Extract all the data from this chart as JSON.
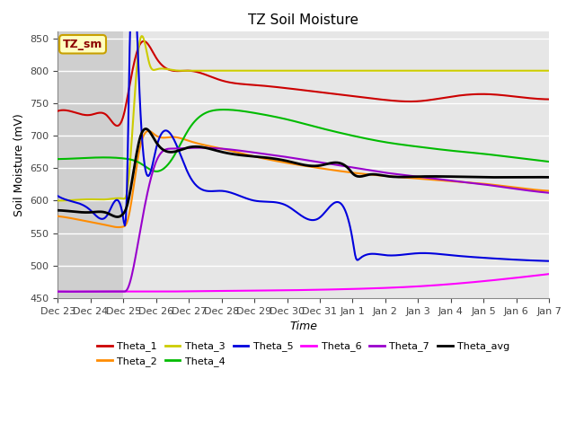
{
  "title": "TZ Soil Moisture",
  "xlabel": "Time",
  "ylabel": "Soil Moisture (mV)",
  "ylim": [
    450,
    860
  ],
  "yticks": [
    450,
    500,
    550,
    600,
    650,
    700,
    750,
    800,
    850
  ],
  "bg_color": "#e6e6e6",
  "fig_color": "#ffffff",
  "label_box_text": "TZ_sm",
  "x_labels": [
    "Dec 23",
    "Dec 24",
    "Dec 25",
    "Dec 26",
    "Dec 27",
    "Dec 28",
    "Dec 29",
    "Dec 30",
    "Dec 31",
    "Jan 1",
    "Jan 2",
    "Jan 3",
    "Jan 4",
    "Jan 5",
    "Jan 6",
    "Jan 7"
  ],
  "series_colors": {
    "Theta_1": "#cc0000",
    "Theta_2": "#ff8c00",
    "Theta_3": "#cccc00",
    "Theta_4": "#00bb00",
    "Theta_5": "#0000dd",
    "Theta_6": "#ff00ff",
    "Theta_7": "#9900cc",
    "Theta_avg": "#000000"
  },
  "spike_day_idx": 2
}
